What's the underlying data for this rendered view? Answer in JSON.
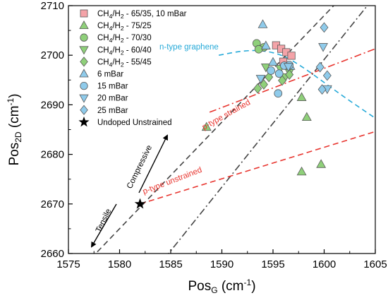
{
  "chart_data": {
    "type": "scatter",
    "xlabel": "Pos",
    "xlabel_sub": "G",
    "xlabel_unit": " (cm",
    "xlabel_sup": "-1",
    "xlabel_end": ")",
    "ylabel": "Pos",
    "ylabel_sub": "2D",
    "ylabel_unit": " (cm",
    "ylabel_sup": "-1",
    "ylabel_end": ")",
    "xlim": [
      1575,
      1605
    ],
    "ylim": [
      2660,
      2710
    ],
    "xticks": [
      "1575",
      "1580",
      "1585",
      "1590",
      "1595",
      "1600",
      "1605"
    ],
    "yticks": [
      "2660",
      "2670",
      "2680",
      "2690",
      "2700",
      "2710"
    ],
    "series": [
      {
        "name": "CH4/H2 - 65/35, 10 mBar",
        "marker": "square",
        "color": "#F4A3A8",
        "points": [
          [
            1595.3,
            2702.0
          ],
          [
            1595.8,
            2701.3
          ],
          [
            1596.3,
            2700.6
          ],
          [
            1596.8,
            2699.9
          ],
          [
            1596.0,
            2698.7
          ]
        ]
      },
      {
        "name": "CH4/H2 - 75/25",
        "marker": "triangle-up",
        "color": "#8FD07A",
        "points": [
          [
            1588.5,
            2685.5
          ],
          [
            1597.8,
            2691.5
          ],
          [
            1598.3,
            2687.5
          ],
          [
            1597.8,
            2676.5
          ],
          [
            1599.7,
            2678.0
          ]
        ]
      },
      {
        "name": "CH4/H2 - 70/30",
        "marker": "circle",
        "color": "#8FD07A",
        "points": [
          [
            1593.4,
            2702.4
          ],
          [
            1594.1,
            2701.6
          ],
          [
            1593.6,
            2701.2
          ]
        ]
      },
      {
        "name": "CH4/H2 - 60/40",
        "marker": "triangle-down",
        "color": "#8FD07A",
        "points": [
          [
            1594.3,
            2697.6
          ],
          [
            1595.7,
            2697.3
          ],
          [
            1596.2,
            2695.6
          ],
          [
            1596.6,
            2696.6
          ]
        ]
      },
      {
        "name": "CH4/H2 - 55/45",
        "marker": "diamond",
        "color": "#8FD07A",
        "points": [
          [
            1593.5,
            2693.3
          ],
          [
            1594.1,
            2694.1
          ],
          [
            1594.6,
            2695.6
          ],
          [
            1595.9,
            2694.9
          ],
          [
            1596.6,
            2696.1
          ]
        ]
      },
      {
        "name": "6 mBar",
        "marker": "triangle-up",
        "color": "#8FCBEB",
        "points": [
          [
            1594.0,
            2706.2
          ],
          [
            1594.3,
            2701.9
          ],
          [
            1595.0,
            2698.6
          ],
          [
            1596.7,
            2697.8
          ]
        ]
      },
      {
        "name": "15 mBar",
        "marker": "circle",
        "color": "#8FCBEB",
        "points": [
          [
            1594.8,
            2696.9
          ],
          [
            1595.6,
            2696.3
          ],
          [
            1596.1,
            2697.9
          ],
          [
            1596.6,
            2698.0
          ],
          [
            1595.5,
            2692.3
          ]
        ]
      },
      {
        "name": "20 mBar",
        "marker": "triangle-down",
        "color": "#8FCBEB",
        "points": [
          [
            1593.8,
            2695.3
          ],
          [
            1596.5,
            2697.7
          ],
          [
            1599.9,
            2701.7
          ],
          [
            1600.3,
            2693.2
          ]
        ]
      },
      {
        "name": "25 mBar",
        "marker": "diamond",
        "color": "#8FCBEB",
        "points": [
          [
            1599.6,
            2697.6
          ],
          [
            1600.0,
            2705.6
          ],
          [
            1600.3,
            2695.9
          ],
          [
            1599.8,
            2693.1
          ]
        ]
      },
      {
        "name": "Undoped Unstrained",
        "marker": "star",
        "color": "#000000",
        "points": [
          [
            1582.0,
            2670.0
          ]
        ]
      }
    ],
    "lines": [
      {
        "style": "dash",
        "color": "#444444",
        "points": [
          [
            1577.2,
            2659.0
          ],
          [
            1601.4,
            2711.0
          ]
        ]
      },
      {
        "style": "dashdot",
        "color": "#444444",
        "points": [
          [
            1584.4,
            2659.0
          ],
          [
            1605.0,
            2712.0
          ]
        ]
      },
      {
        "style": "dash",
        "color": "#E8352F",
        "points": [
          [
            1582.0,
            2670.0
          ],
          [
            1605.0,
            2684.6
          ]
        ]
      },
      {
        "style": "dashdot",
        "color": "#E8352F",
        "points": [
          [
            1588.8,
            2688.5
          ],
          [
            1605.0,
            2701.3
          ]
        ]
      },
      {
        "style": "dash-curve",
        "color": "#25A9D8",
        "points": [
          [
            1589.7,
            2700.0
          ],
          [
            1592.0,
            2700.9
          ],
          [
            1594.0,
            2701.0
          ],
          [
            1596.0,
            2700.0
          ],
          [
            1598.0,
            2697.5
          ],
          [
            1600.0,
            2694.5
          ],
          [
            1602.0,
            2691.5
          ],
          [
            1605.0,
            2687.3
          ]
        ]
      }
    ],
    "annotations": {
      "ntype": {
        "text": "n-type graphene",
        "color": "#25A9D8"
      },
      "pstrained": {
        "text": "p-type strained",
        "color": "#E8352F"
      },
      "punstrained": {
        "text": "p-type unstrained",
        "color": "#E8352F"
      },
      "compressive": {
        "text": "Compressive",
        "color": "#000000"
      },
      "tensile": {
        "text": "Tensile",
        "color": "#000000"
      }
    }
  }
}
